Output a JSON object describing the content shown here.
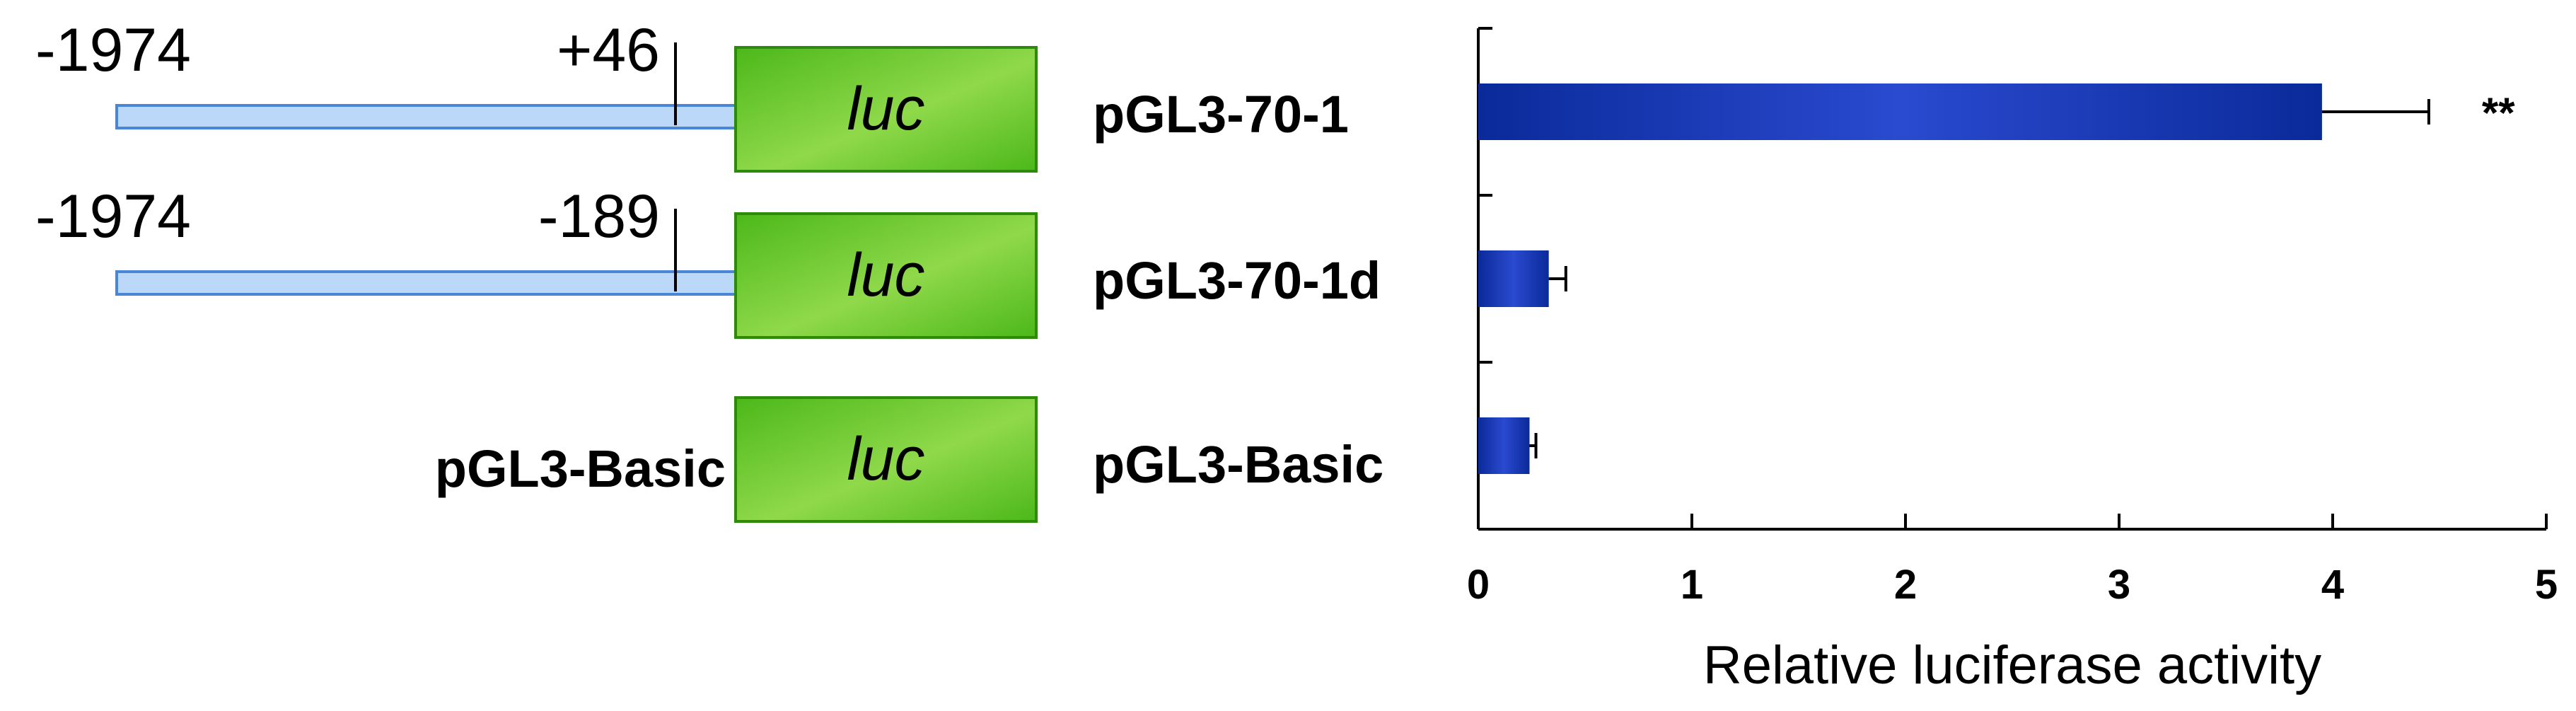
{
  "colors": {
    "promoter_fill": "#bcd8f8",
    "promoter_stroke": "#4a86d8",
    "luc_light": "#8fd94a",
    "luc_dark": "#4cb81a",
    "luc_stroke": "#2e8a0c",
    "bar_dark": "#0a2a9a",
    "bar_light": "#2a4ad0"
  },
  "constructs": [
    {
      "start_label": "-1974",
      "end_label": "+46",
      "luc_label": "luc",
      "name": "pGL3-70-1",
      "promoter_start_bp": -1974,
      "promoter_end_bp": 46
    },
    {
      "start_label": "-1974",
      "end_label": "-189",
      "luc_label": "luc",
      "name": "pGL3-70-1d",
      "promoter_start_bp": -1974,
      "promoter_end_bp": -189
    },
    {
      "start_label": "",
      "end_label": "",
      "basic_label": "pGL3-Basic",
      "luc_label": "luc",
      "name": "pGL3-Basic"
    }
  ],
  "chart_data": {
    "type": "bar",
    "orientation": "horizontal",
    "categories": [
      "pGL3-70-1",
      "pGL3-70-1d",
      "pGL3-Basic"
    ],
    "values": [
      3.95,
      0.33,
      0.24
    ],
    "errors": [
      0.5,
      0.08,
      0.03
    ],
    "significance": [
      "**",
      "",
      ""
    ],
    "xlabel": "Relative luciferase activity",
    "ylabel": "",
    "title": "",
    "xlim": [
      0,
      5
    ],
    "xticks": [
      0,
      1,
      2,
      3,
      4,
      5
    ],
    "grid": false,
    "legend": "none"
  }
}
